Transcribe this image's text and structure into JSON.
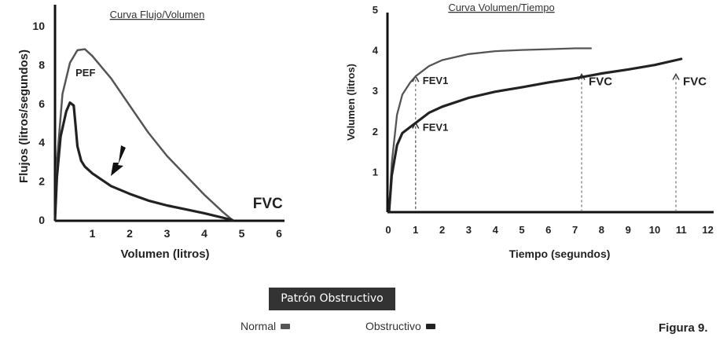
{
  "chart_data": [
    {
      "type": "line",
      "title": "Curva Flujo/Volumen",
      "xlabel": "Volumen (litros)",
      "ylabel": "Flujos (litros/segundos)",
      "xlim": [
        0,
        6
      ],
      "ylim": [
        0,
        10
      ],
      "x_ticks": [
        "1",
        "2",
        "3",
        "4",
        "5",
        "6"
      ],
      "y_ticks": [
        "0",
        "2",
        "4",
        "6",
        "8",
        "10"
      ],
      "grid": false,
      "series": [
        {
          "x": [
            0,
            0.05,
            0.2,
            0.4,
            0.6,
            0.8,
            1.0,
            1.5,
            2.0,
            2.5,
            3.0,
            3.5,
            4.0,
            4.5,
            4.75
          ],
          "y": [
            0,
            3.0,
            6.5,
            8.1,
            8.75,
            8.8,
            8.45,
            7.3,
            5.9,
            4.5,
            3.3,
            2.3,
            1.3,
            0.4,
            0
          ]
        },
        {
          "x": [
            0,
            0.05,
            0.15,
            0.3,
            0.4,
            0.5,
            0.55,
            0.6,
            0.7,
            0.8,
            1.0,
            1.5,
            2.0,
            2.5,
            3.0,
            3.5,
            4.0,
            4.75
          ],
          "y": [
            0,
            2.2,
            4.3,
            5.6,
            6.05,
            5.9,
            4.9,
            3.8,
            3.05,
            2.75,
            2.4,
            1.75,
            1.35,
            1.0,
            0.75,
            0.55,
            0.35,
            0
          ]
        }
      ],
      "annotations": [
        {
          "text": "PEF",
          "x": 0.55,
          "y": 7.4
        },
        {
          "text": "FVC",
          "x": 5.3,
          "y": 0.6
        }
      ]
    },
    {
      "type": "line",
      "title": "Curva Volumen/Tiempo",
      "xlabel": "Tiempo (segundos)",
      "ylabel": "Volumen (litros)",
      "xlim": [
        0,
        13
      ],
      "ylim": [
        0,
        5
      ],
      "x_ticks": [
        "0",
        "1",
        "2",
        "3",
        "4",
        "5",
        "6",
        "7",
        "8",
        "9",
        "10",
        "11",
        "12"
      ],
      "y_ticks": [
        "1",
        "2",
        "3",
        "4",
        "5"
      ],
      "grid": false,
      "series": [
        {
          "x": [
            0,
            0.1,
            0.3,
            0.5,
            0.8,
            1.0,
            1.5,
            2.0,
            3.0,
            4.0,
            5.0,
            6.0,
            7.0,
            7.6
          ],
          "y": [
            0,
            1.2,
            2.4,
            2.9,
            3.2,
            3.35,
            3.6,
            3.75,
            3.9,
            3.97,
            4.0,
            4.02,
            4.04,
            4.04
          ]
        },
        {
          "x": [
            0,
            0.1,
            0.3,
            0.5,
            0.8,
            1.0,
            1.5,
            2.0,
            3.0,
            4.0,
            5.0,
            6.0,
            7.0,
            8.0,
            9.0,
            10.0,
            11.0
          ],
          "y": [
            0,
            0.9,
            1.65,
            1.95,
            2.1,
            2.2,
            2.45,
            2.6,
            2.82,
            2.97,
            3.08,
            3.2,
            3.3,
            3.42,
            3.52,
            3.63,
            3.78
          ]
        }
      ],
      "markers": [
        {
          "x": 1.0,
          "y": 3.35,
          "label": "FEV1"
        },
        {
          "x": 1.0,
          "y": 2.2,
          "label": "FEV1"
        },
        {
          "x": 7.25,
          "y": 3.4,
          "label": "FVC"
        },
        {
          "x": 10.8,
          "y": 3.4,
          "label": "FVC"
        }
      ]
    }
  ],
  "caption": "Patrón Obstructivo",
  "legend": [
    {
      "label": "Normal",
      "color": "#555555"
    },
    {
      "label": "Obstructivo",
      "color": "#222222"
    }
  ],
  "figure_label": "Figura 9."
}
